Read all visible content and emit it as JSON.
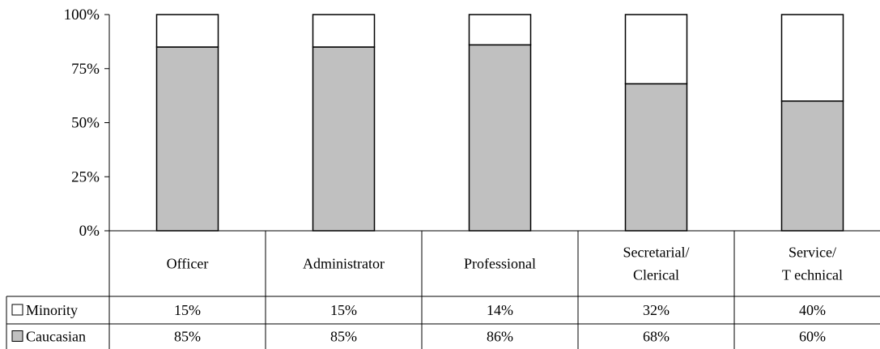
{
  "chart_data": {
    "type": "bar",
    "stacked": true,
    "percent_stacked": true,
    "categories": [
      "Officer",
      "Administrator",
      "Professional",
      "Secretarial/ Clerical",
      "Service/ Technical"
    ],
    "category_lines": [
      [
        "Officer"
      ],
      [
        "Administrator"
      ],
      [
        "Professional"
      ],
      [
        "Secretarial/",
        "Clerical"
      ],
      [
        "Service/",
        "T echnical"
      ]
    ],
    "series": [
      {
        "name": "Caucasian",
        "values": [
          85,
          85,
          86,
          68,
          60
        ],
        "labels": [
          "85%",
          "85%",
          "86%",
          "68%",
          "60%"
        ],
        "color": "#c0c0c0"
      },
      {
        "name": "Minority",
        "values": [
          15,
          15,
          14,
          32,
          40
        ],
        "labels": [
          "15%",
          "15%",
          "14%",
          "32%",
          "40%"
        ],
        "color": "#ffffff"
      }
    ],
    "table_row_order": [
      "Minority",
      "Caucasian"
    ],
    "y_ticks": [
      "0%",
      "25%",
      "50%",
      "75%",
      "100%"
    ],
    "ylim": [
      0,
      100
    ],
    "grid": false,
    "legend": "data-table"
  }
}
